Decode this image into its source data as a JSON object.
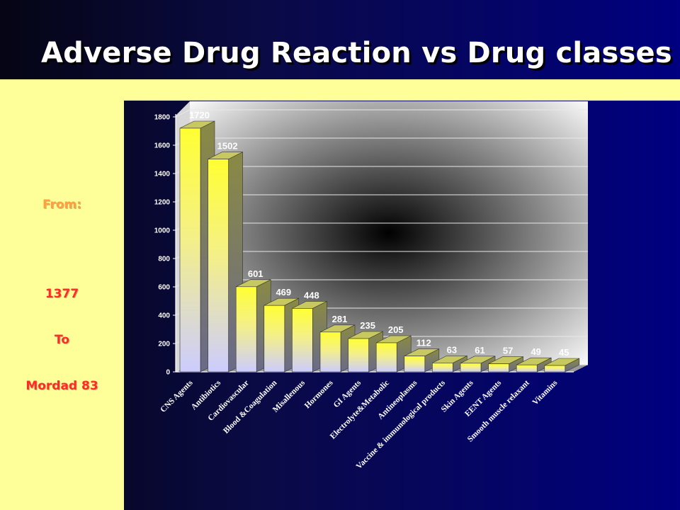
{
  "title": "Adverse Drug Reaction vs Drug classes",
  "side": {
    "from_label": "From:",
    "start_year": "1377",
    "to_word": "To",
    "end_date": "Mordad 83"
  },
  "colors": {
    "background": "#000080",
    "band": "#ffff99",
    "from_label": "#ffa040",
    "dates": "#ff2a2a",
    "bar_top": "#ffff33",
    "bar_bottom": "#ccccff"
  },
  "chart_data": {
    "type": "bar",
    "title": "",
    "xlabel": "",
    "ylabel": "",
    "ylim": [
      0,
      1800
    ],
    "yticks": [
      0,
      200,
      400,
      600,
      800,
      1000,
      1200,
      1400,
      1600,
      1800
    ],
    "grid": true,
    "style": "3d",
    "categories": [
      "CNS Agents",
      "Antibiotics",
      "Cardiovascular",
      "Blood &Coagulation",
      "Misallenous",
      "Hormones",
      "GI Agents",
      "Electrolyte&Metabolic",
      "Antineoplasms",
      "Vaccine & immunological products",
      "Skin Agents",
      "EENT Agents",
      "Smooth muscle relaxant",
      "Vitamins"
    ],
    "values": [
      1720,
      1502,
      601,
      469,
      448,
      281,
      235,
      205,
      112,
      63,
      61,
      57,
      49,
      45
    ]
  }
}
